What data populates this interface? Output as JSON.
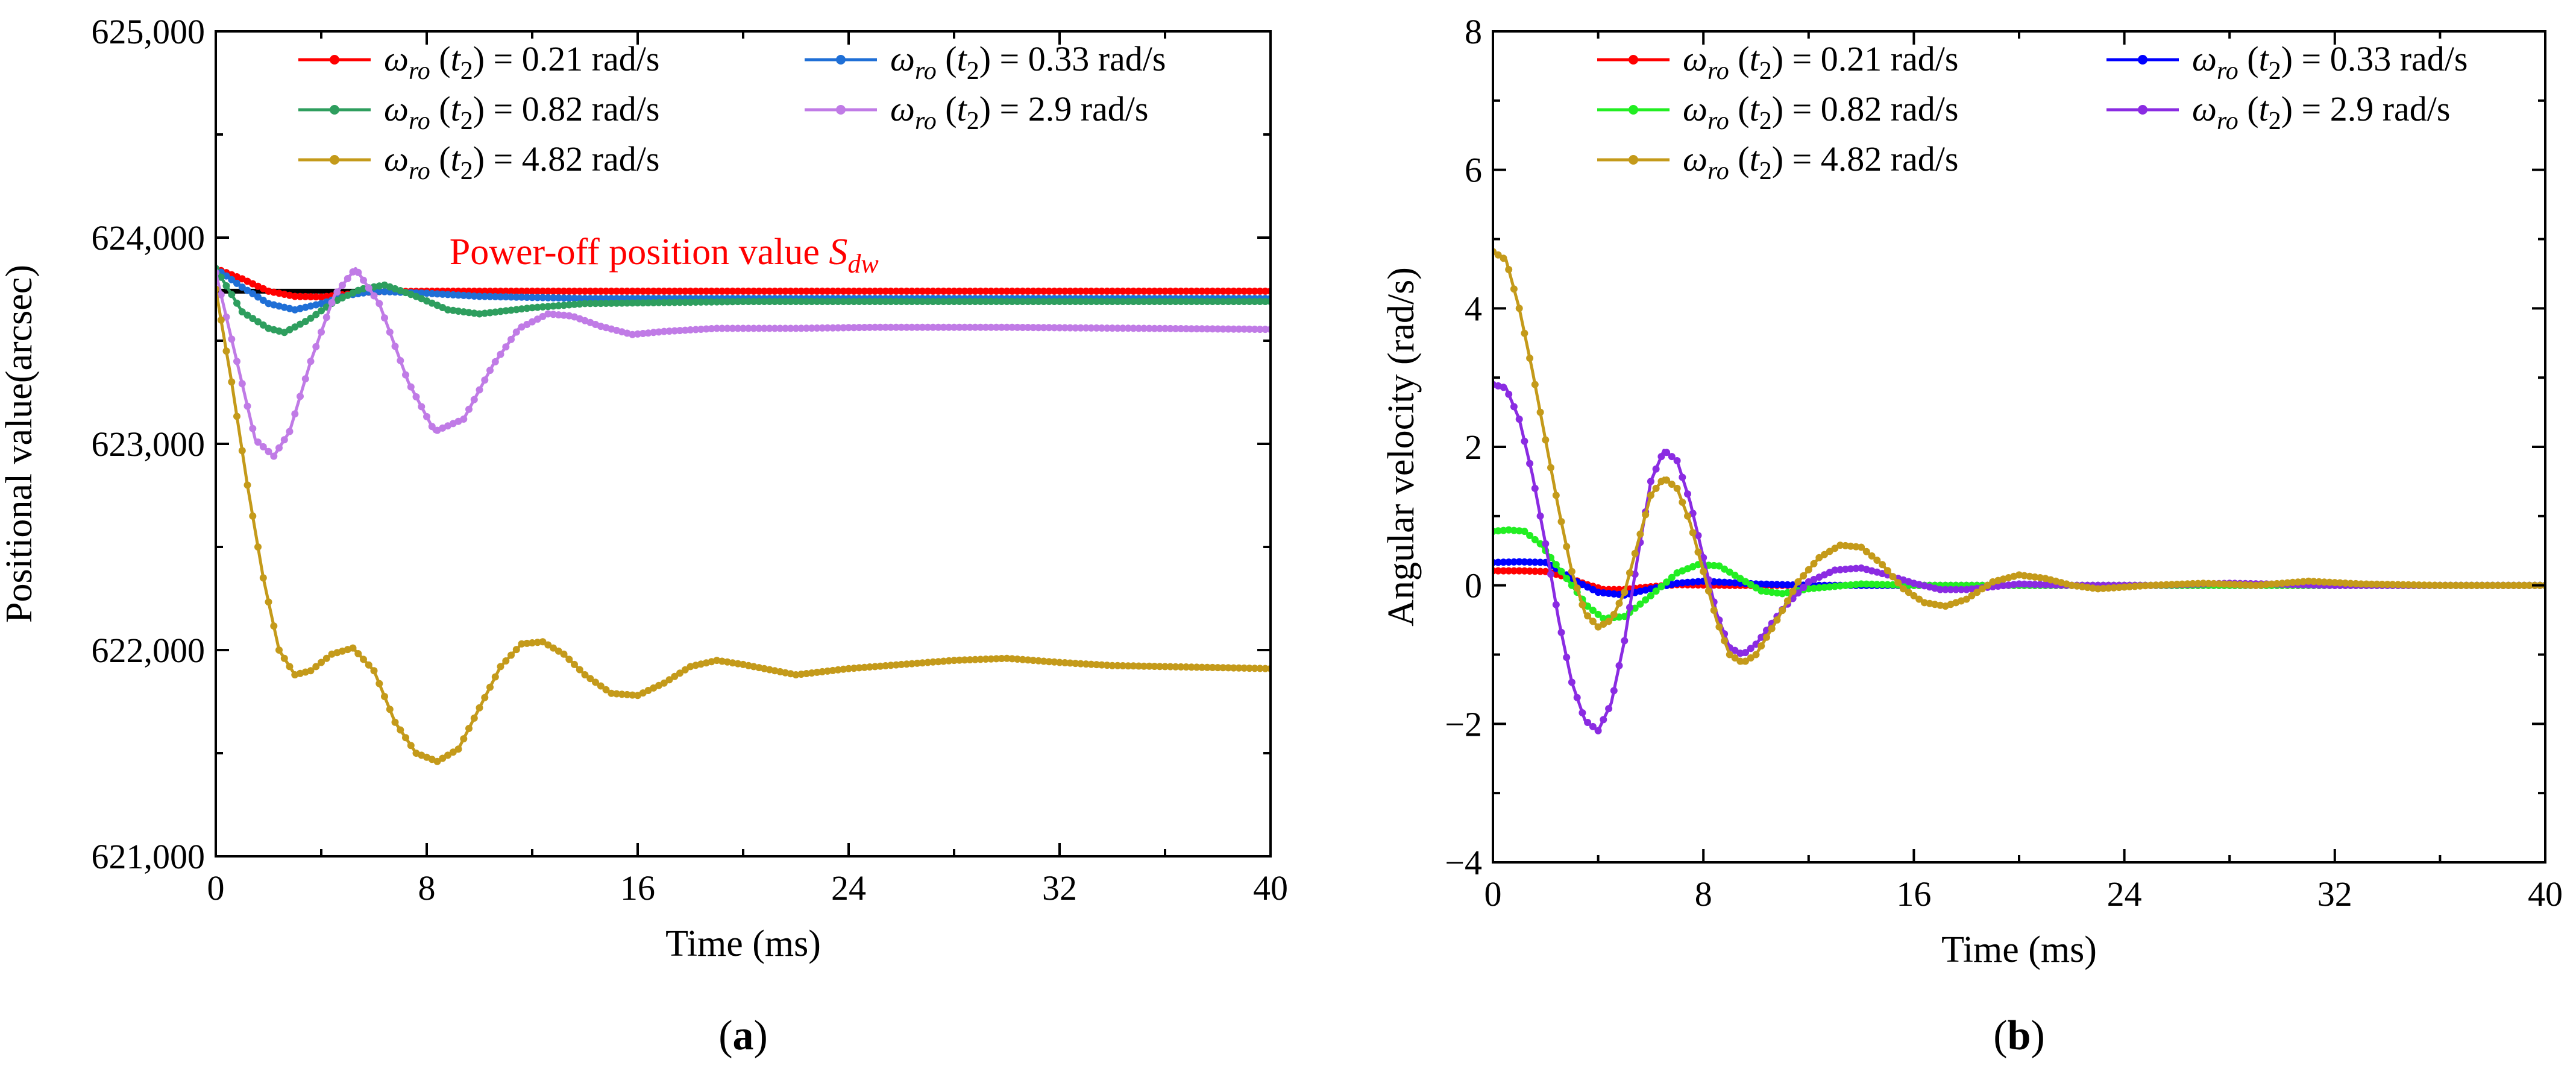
{
  "chart_data": [
    {
      "type": "line",
      "panel_label": "(a)",
      "panel_letter": "a",
      "xlabel": "Time (ms)",
      "ylabel": "Positional value(arcsec)",
      "xlim": [
        0,
        40
      ],
      "ylim": [
        621000,
        625000
      ],
      "xticks": [
        0,
        8,
        16,
        24,
        32,
        40
      ],
      "xtick_labels": [
        "0",
        "8",
        "16",
        "24",
        "32",
        "40"
      ],
      "yticks": [
        621000,
        622000,
        623000,
        624000,
        625000
      ],
      "ytick_labels": [
        "621,000",
        "622,000",
        "623,000",
        "624,000",
        "625,000"
      ],
      "grid": false,
      "legend_position": "top",
      "legend_label_suffix": "rad/s",
      "reference_line": {
        "label": "Power-off position value",
        "symbol": "S",
        "subscript": "dw",
        "y": 623740,
        "color": "#000000"
      },
      "annotation_color": "#ff0000",
      "series": [
        {
          "name": "0.21",
          "color": "#ff0000",
          "x": [
            0,
            1,
            2,
            3,
            4,
            5,
            6,
            8,
            12,
            20,
            30,
            40
          ],
          "y": [
            623850,
            623800,
            623740,
            623715,
            623712,
            623725,
            623738,
            623740,
            623740,
            623740,
            623740,
            623740
          ]
        },
        {
          "name": "0.33",
          "color": "#1f6fd6",
          "x": [
            0,
            1,
            2,
            3,
            4,
            5,
            6,
            8,
            10,
            14,
            20,
            30,
            40
          ],
          "y": [
            623850,
            623760,
            623680,
            623650,
            623680,
            623720,
            623740,
            623730,
            623715,
            623705,
            623705,
            623705,
            623705
          ]
        },
        {
          "name": "0.82",
          "color": "#2e9e5e",
          "x": [
            0,
            1,
            2,
            2.6,
            3.5,
            4.5,
            5.5,
            6.4,
            7.5,
            8.8,
            10,
            12,
            14,
            17,
            20,
            25,
            30,
            40
          ],
          "y": [
            623850,
            623640,
            623560,
            623540,
            623600,
            623690,
            623750,
            623770,
            623720,
            623650,
            623630,
            623660,
            623680,
            623685,
            623690,
            623690,
            623690,
            623690
          ]
        },
        {
          "name": "2.9",
          "color": "#c07be6",
          "x": [
            0,
            0.8,
            1.5,
            2.2,
            2.8,
            3.6,
            4.5,
            5.3,
            6.2,
            7.3,
            8.3,
            9.4,
            10.5,
            11.5,
            12.6,
            13.5,
            14.6,
            15.8,
            17,
            19,
            22,
            25,
            30,
            35,
            40
          ],
          "y": [
            623830,
            623400,
            623020,
            622940,
            623060,
            623400,
            623720,
            623850,
            623680,
            623300,
            623060,
            623120,
            623380,
            623560,
            623630,
            623620,
            623570,
            623530,
            623545,
            623560,
            623560,
            623565,
            623565,
            623560,
            623555
          ]
        },
        {
          "name": "4.82",
          "color": "#c49a1a",
          "x": [
            0,
            0.6,
            1.2,
            1.8,
            2.4,
            3,
            3.6,
            4.4,
            5.2,
            6,
            6.8,
            7.6,
            8.4,
            9.2,
            10,
            10.8,
            11.6,
            12.4,
            13.2,
            14,
            15,
            16,
            17,
            18,
            19,
            20,
            22,
            24,
            26,
            28,
            30,
            32,
            34,
            36,
            38,
            40
          ],
          "y": [
            623750,
            623300,
            622800,
            622350,
            622000,
            621880,
            621900,
            621980,
            622010,
            621900,
            621650,
            621500,
            621460,
            621520,
            621720,
            621920,
            622030,
            622040,
            621980,
            621880,
            621790,
            621780,
            621840,
            621920,
            621950,
            621930,
            621880,
            621910,
            621930,
            621950,
            621960,
            621940,
            621925,
            621920,
            621915,
            621910
          ]
        }
      ]
    },
    {
      "type": "line",
      "panel_label": "(b)",
      "panel_letter": "b",
      "xlabel": "Time (ms)",
      "ylabel": "Angular velocity (rad/s)",
      "xlim": [
        0,
        40
      ],
      "ylim": [
        -4,
        8
      ],
      "xticks": [
        0,
        8,
        16,
        24,
        32,
        40
      ],
      "xtick_labels": [
        "0",
        "8",
        "16",
        "24",
        "32",
        "40"
      ],
      "yticks": [
        -4,
        -2,
        0,
        2,
        4,
        6,
        8
      ],
      "ytick_labels": [
        "−4",
        "−2",
        "0",
        "2",
        "4",
        "6",
        "8"
      ],
      "grid": false,
      "legend_position": "top",
      "legend_label_suffix": "rad/s",
      "series": [
        {
          "name": "0.21",
          "color": "#ff0000",
          "x": [
            0,
            1,
            2,
            2.8,
            3.5,
            4.2,
            5,
            6,
            7,
            9,
            12,
            20,
            30,
            40
          ],
          "y": [
            0.21,
            0.21,
            0.2,
            0.12,
            0.02,
            -0.06,
            -0.06,
            -0.02,
            0.01,
            0.0,
            0.0,
            0.0,
            0.0,
            0.0
          ]
        },
        {
          "name": "0.33",
          "color": "#0000ff",
          "x": [
            0,
            1,
            2,
            2.6,
            3.2,
            4,
            5,
            6,
            7,
            8,
            9,
            10,
            12,
            16,
            20,
            40
          ],
          "y": [
            0.33,
            0.34,
            0.33,
            0.2,
            0.05,
            -0.1,
            -0.14,
            -0.05,
            0.03,
            0.06,
            0.04,
            0.02,
            0.0,
            0.0,
            0.0,
            0.0
          ]
        },
        {
          "name": "0.82",
          "color": "#22ee22",
          "x": [
            0,
            0.6,
            1.2,
            1.8,
            2.4,
            3,
            3.6,
            4.2,
            5,
            6,
            7,
            7.8,
            8.6,
            9.4,
            10.2,
            11,
            12,
            14,
            16,
            20,
            40
          ],
          "y": [
            0.78,
            0.8,
            0.78,
            0.6,
            0.3,
            0.0,
            -0.3,
            -0.48,
            -0.45,
            -0.15,
            0.18,
            0.3,
            0.28,
            0.1,
            -0.08,
            -0.12,
            -0.05,
            0.02,
            0.0,
            0.0,
            0.0
          ]
        },
        {
          "name": "2.9",
          "color": "#8a2be2",
          "x": [
            0,
            0.5,
            1,
            1.5,
            2,
            2.5,
            3,
            3.5,
            4,
            4.5,
            5,
            5.5,
            6,
            6.5,
            7,
            7.5,
            8,
            8.5,
            9,
            9.5,
            10,
            11,
            12,
            13,
            14,
            15,
            16,
            17,
            18,
            19,
            20,
            22,
            25,
            28,
            32,
            36,
            40
          ],
          "y": [
            2.9,
            2.85,
            2.4,
            1.6,
            0.6,
            -0.5,
            -1.4,
            -1.95,
            -2.1,
            -1.7,
            -0.8,
            0.4,
            1.5,
            1.95,
            1.8,
            1.2,
            0.4,
            -0.4,
            -0.9,
            -1.0,
            -0.85,
            -0.35,
            0.05,
            0.22,
            0.25,
            0.15,
            0.03,
            -0.06,
            -0.06,
            -0.02,
            0.02,
            0.0,
            0.0,
            0.03,
            0.0,
            0.0,
            0.0
          ]
        },
        {
          "name": "4.82",
          "color": "#c49a1a",
          "x": [
            0,
            0.5,
            1,
            1.5,
            2,
            2.5,
            3,
            3.5,
            4,
            4.5,
            5,
            5.5,
            6,
            6.5,
            7,
            7.5,
            8,
            8.5,
            9,
            9.5,
            10,
            10.8,
            11.6,
            12.4,
            13.2,
            14,
            14.8,
            15.6,
            16.4,
            17.2,
            18,
            19,
            20,
            21,
            22,
            23,
            25,
            27,
            29,
            31,
            33,
            36,
            40
          ],
          "y": [
            4.82,
            4.7,
            4.0,
            3.1,
            2.1,
            1.1,
            0.2,
            -0.4,
            -0.6,
            -0.5,
            -0.1,
            0.6,
            1.3,
            1.55,
            1.4,
            0.9,
            0.2,
            -0.5,
            -1.0,
            -1.12,
            -1.0,
            -0.5,
            0.05,
            0.4,
            0.58,
            0.55,
            0.3,
            -0.05,
            -0.25,
            -0.3,
            -0.2,
            0.05,
            0.15,
            0.1,
            0.0,
            -0.05,
            0.0,
            0.03,
            0.0,
            0.06,
            0.02,
            0.0,
            0.0
          ]
        }
      ]
    }
  ]
}
